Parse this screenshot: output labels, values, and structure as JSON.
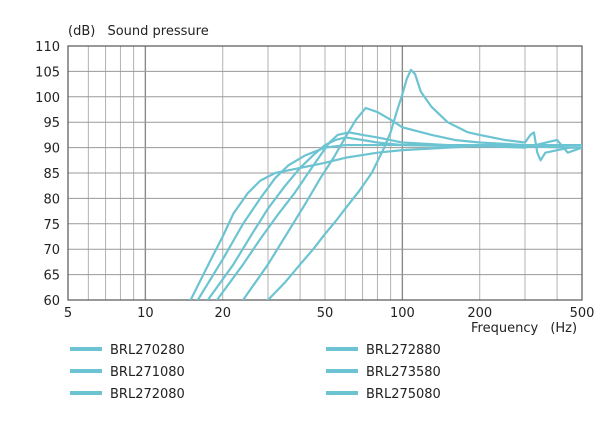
{
  "chart_data": {
    "type": "line",
    "title": "Sound pressure",
    "ylabel": "(dB)",
    "xlabel": "Frequency",
    "xunit": "(Hz)",
    "xscale": "log",
    "xlim": [
      5,
      500
    ],
    "ylim": [
      60,
      110
    ],
    "xticks": [
      {
        "value": 5,
        "label": "5"
      },
      {
        "value": 10,
        "label": "10"
      },
      {
        "value": 20,
        "label": "20"
      },
      {
        "value": 50,
        "label": "50"
      },
      {
        "value": 100,
        "label": "100"
      },
      {
        "value": 200,
        "label": "200"
      },
      {
        "value": 500,
        "label": "500"
      }
    ],
    "yticks": [
      {
        "value": 60,
        "label": "60"
      },
      {
        "value": 65,
        "label": "65"
      },
      {
        "value": 70,
        "label": "70"
      },
      {
        "value": 75,
        "label": "75"
      },
      {
        "value": 80,
        "label": "80"
      },
      {
        "value": 85,
        "label": "85"
      },
      {
        "value": 90,
        "label": "90"
      },
      {
        "value": 95,
        "label": "95"
      },
      {
        "value": 100,
        "label": "100"
      },
      {
        "value": 105,
        "label": "105"
      },
      {
        "value": 110,
        "label": "110"
      }
    ],
    "grid": true,
    "legend_position": "bottom",
    "series_color": "#6cc4d2",
    "series": [
      {
        "name": "BRL270280",
        "points": [
          [
            15,
            60
          ],
          [
            18,
            68
          ],
          [
            20,
            72.5
          ],
          [
            22,
            77
          ],
          [
            25,
            81
          ],
          [
            28,
            83.5
          ],
          [
            32,
            85
          ],
          [
            40,
            86
          ],
          [
            50,
            87
          ],
          [
            60,
            88
          ],
          [
            80,
            89
          ],
          [
            100,
            89.5
          ],
          [
            150,
            90
          ],
          [
            200,
            90.3
          ],
          [
            300,
            90.5
          ],
          [
            400,
            90.5
          ],
          [
            500,
            90.5
          ]
        ]
      },
      {
        "name": "BRL271080",
        "points": [
          [
            16,
            60
          ],
          [
            20,
            68
          ],
          [
            24,
            75
          ],
          [
            28,
            80
          ],
          [
            32,
            84
          ],
          [
            36,
            86.5
          ],
          [
            42,
            88.5
          ],
          [
            50,
            90
          ],
          [
            60,
            90.5
          ],
          [
            80,
            90.5
          ],
          [
            100,
            90.5
          ],
          [
            150,
            90.5
          ],
          [
            200,
            90.5
          ],
          [
            300,
            90.5
          ],
          [
            400,
            90.5
          ],
          [
            500,
            90.5
          ]
        ]
      },
      {
        "name": "BRL272080",
        "points": [
          [
            17.5,
            60
          ],
          [
            22,
            67
          ],
          [
            26,
            73
          ],
          [
            30,
            78
          ],
          [
            35,
            82.5
          ],
          [
            40,
            86
          ],
          [
            45,
            88.5
          ],
          [
            50,
            90.5
          ],
          [
            55,
            91.5
          ],
          [
            60,
            92
          ],
          [
            70,
            91.5
          ],
          [
            80,
            91
          ],
          [
            100,
            90.5
          ],
          [
            150,
            90.3
          ],
          [
            200,
            90.2
          ],
          [
            300,
            90.2
          ],
          [
            500,
            90
          ]
        ]
      },
      {
        "name": "BRL272880",
        "points": [
          [
            19,
            60
          ],
          [
            24,
            67
          ],
          [
            28,
            72
          ],
          [
            33,
            77
          ],
          [
            38,
            81
          ],
          [
            43,
            85
          ],
          [
            48,
            88.5
          ],
          [
            52,
            91
          ],
          [
            56,
            92.5
          ],
          [
            62,
            93
          ],
          [
            70,
            92.5
          ],
          [
            80,
            92
          ],
          [
            100,
            91
          ],
          [
            150,
            90.5
          ],
          [
            200,
            90.3
          ],
          [
            300,
            90
          ],
          [
            400,
            91.5
          ],
          [
            440,
            89
          ],
          [
            500,
            90
          ]
        ]
      },
      {
        "name": "BRL273580",
        "points": [
          [
            24,
            60
          ],
          [
            30,
            67
          ],
          [
            36,
            73.5
          ],
          [
            42,
            79
          ],
          [
            48,
            84
          ],
          [
            54,
            88
          ],
          [
            60,
            92
          ],
          [
            66,
            95.5
          ],
          [
            72,
            97.8
          ],
          [
            80,
            97
          ],
          [
            90,
            95.5
          ],
          [
            100,
            94
          ],
          [
            130,
            92.5
          ],
          [
            160,
            91.5
          ],
          [
            200,
            91
          ],
          [
            300,
            90.5
          ],
          [
            400,
            90.5
          ],
          [
            500,
            90.5
          ]
        ]
      },
      {
        "name": "BRL275080",
        "points": [
          [
            30,
            60
          ],
          [
            35,
            63.5
          ],
          [
            40,
            67
          ],
          [
            45,
            70
          ],
          [
            50,
            73
          ],
          [
            55,
            75.5
          ],
          [
            60,
            78
          ],
          [
            68,
            81.5
          ],
          [
            76,
            85
          ],
          [
            85,
            90
          ],
          [
            90,
            93
          ],
          [
            95,
            97
          ],
          [
            100,
            100.5
          ],
          [
            104,
            103.5
          ],
          [
            108,
            105.3
          ],
          [
            112,
            104.5
          ],
          [
            118,
            101
          ],
          [
            130,
            98
          ],
          [
            150,
            95
          ],
          [
            180,
            93
          ],
          [
            200,
            92.5
          ],
          [
            250,
            91.5
          ],
          [
            300,
            91
          ],
          [
            315,
            92.5
          ],
          [
            325,
            93
          ],
          [
            335,
            89
          ],
          [
            345,
            87.5
          ],
          [
            360,
            89
          ],
          [
            400,
            89.5
          ],
          [
            450,
            90
          ],
          [
            500,
            90
          ]
        ]
      }
    ]
  }
}
